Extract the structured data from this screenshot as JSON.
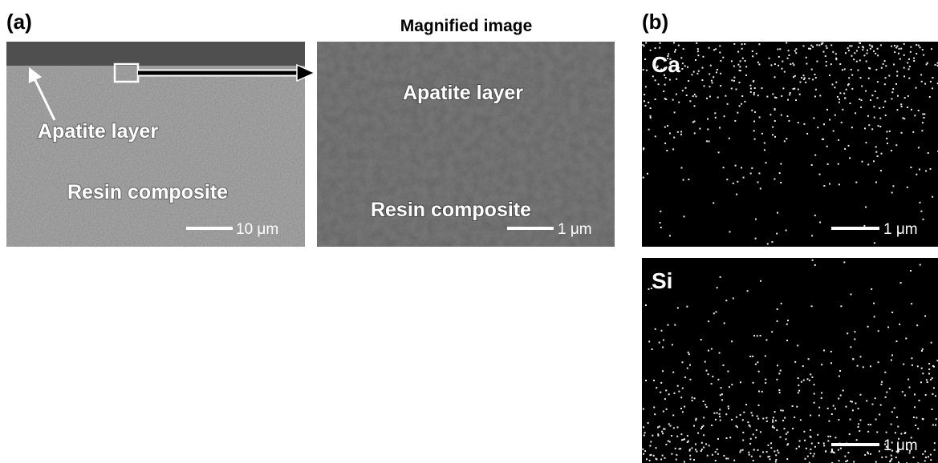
{
  "panel_a": {
    "label": "(a)",
    "sem_image": {
      "labels": [
        "Apatite layer",
        "Resin composite"
      ],
      "scale_bar": "10 μm"
    },
    "magnified_image": {
      "title": "Magnified image",
      "labels": [
        "Apatite layer",
        "Resin composite"
      ],
      "scale_bar": "1 μm"
    }
  },
  "panel_b": {
    "label": "(b)",
    "maps": [
      {
        "element": "Ca",
        "scale_bar": "1 μm"
      },
      {
        "element": "Si",
        "scale_bar": "1 μm"
      }
    ]
  }
}
